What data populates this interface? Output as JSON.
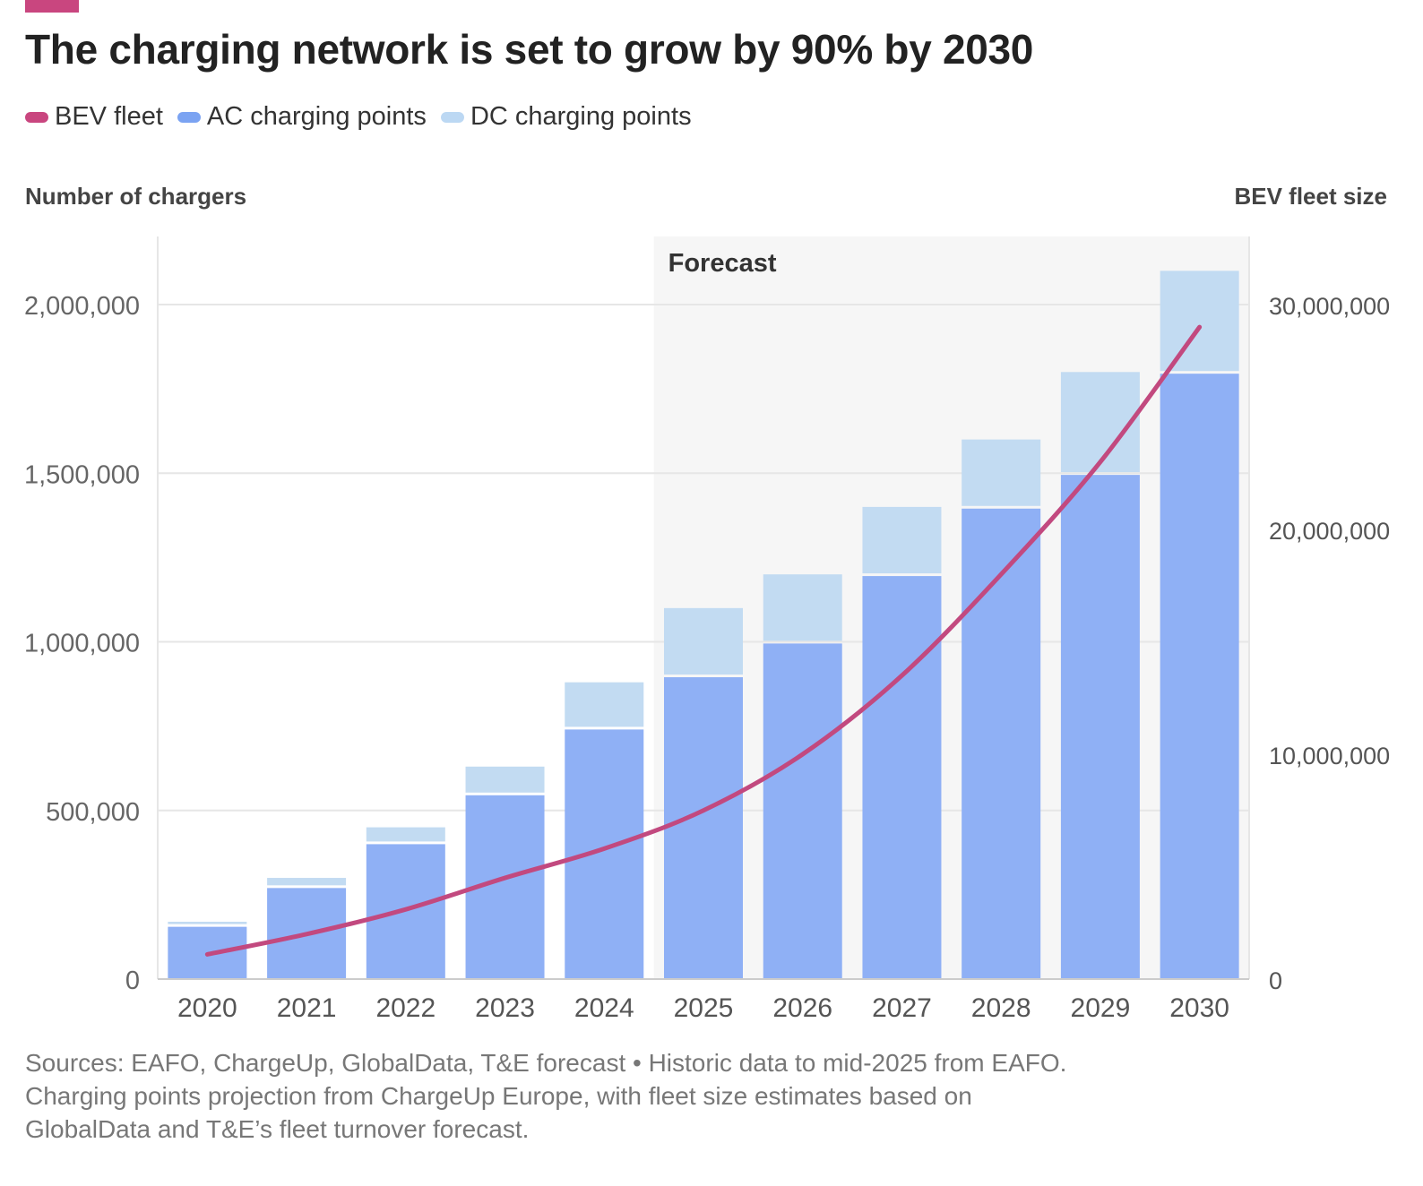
{
  "header": {
    "title": "The charging network is set to grow by 90% by 2030",
    "accent_color": "#c9467f"
  },
  "legend": [
    {
      "label": "BEV fleet",
      "color": "#c9467f"
    },
    {
      "label": "AC charging points",
      "color": "#7ba3f2"
    },
    {
      "label": "DC charging points",
      "color": "#bcd8f3"
    }
  ],
  "chart_data": {
    "type": "bar",
    "categories": [
      "2020",
      "2021",
      "2022",
      "2023",
      "2024",
      "2025",
      "2026",
      "2027",
      "2028",
      "2029",
      "2030"
    ],
    "series": [
      {
        "name": "AC charging points",
        "type": "bar",
        "stack": "chargers",
        "axis": "left",
        "color": "#8fb0f5",
        "values": [
          155000,
          270000,
          400000,
          545000,
          740000,
          895000,
          995000,
          1195000,
          1395000,
          1495000,
          1795000
        ]
      },
      {
        "name": "DC charging points",
        "type": "bar",
        "stack": "chargers",
        "axis": "left",
        "color": "#c2dbf2",
        "values": [
          15000,
          30000,
          50000,
          85000,
          140000,
          205000,
          205000,
          205000,
          205000,
          305000,
          305000
        ]
      },
      {
        "name": "BEV fleet",
        "type": "line",
        "axis": "right",
        "color": "#c2497f",
        "values": [
          1100000,
          2000000,
          3100000,
          4500000,
          5800000,
          7500000,
          10000000,
          13500000,
          18000000,
          23000000,
          29000000
        ]
      }
    ],
    "ylabel": "Number of chargers",
    "y2label": "BEV fleet size",
    "ylim": [
      0,
      2200000
    ],
    "y2lim": [
      0,
      33000000
    ],
    "y_ticks": [
      {
        "value": 0,
        "label": "0"
      },
      {
        "value": 500000,
        "label": "500,000"
      },
      {
        "value": 1000000,
        "label": "1,000,000"
      },
      {
        "value": 1500000,
        "label": "1,500,000"
      },
      {
        "value": 2000000,
        "label": "2,000,000"
      }
    ],
    "y2_ticks": [
      {
        "value": 0,
        "label": "0"
      },
      {
        "value": 10000000,
        "label": "10,000,000"
      },
      {
        "value": 20000000,
        "label": "20,000,000"
      },
      {
        "value": 30000000,
        "label": "30,000,000"
      }
    ],
    "annotation": {
      "label": "Forecast",
      "start_category": "2025",
      "end_category": "2030"
    },
    "grid": true
  },
  "footer": {
    "line1": "Sources: EAFO, ChargeUp, GlobalData, T&E forecast • Historic data to mid-2025 from EAFO.",
    "line2": "Charging points projection from ChargeUp Europe, with fleet size estimates based on",
    "line3": "GlobalData and T&E’s fleet turnover forecast."
  }
}
